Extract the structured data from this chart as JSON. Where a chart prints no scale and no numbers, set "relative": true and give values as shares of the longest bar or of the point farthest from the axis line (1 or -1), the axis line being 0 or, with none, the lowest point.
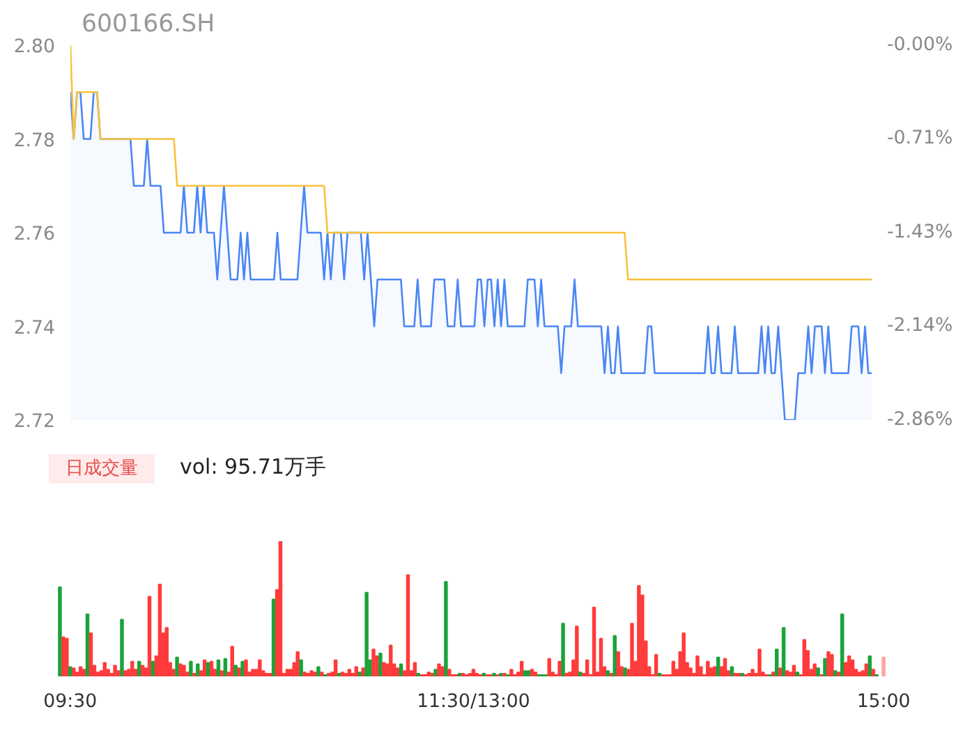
{
  "chart_data": [
    {
      "type": "line",
      "title": "600166.SH",
      "tick_labels": "y",
      "categories": [
        null,
        null,
        null,
        null,
        null,
        null,
        null,
        null,
        null,
        null,
        null,
        null,
        null,
        null,
        null,
        null,
        null,
        null,
        null,
        null,
        null,
        null,
        null,
        null,
        null,
        null,
        null,
        null,
        null,
        null,
        null,
        null,
        null,
        null,
        null,
        null,
        null,
        null,
        null,
        null,
        null,
        null,
        null,
        null,
        null,
        null,
        null,
        null,
        null,
        null,
        null,
        null,
        null,
        null,
        null,
        null,
        null,
        null,
        null,
        null,
        null,
        null,
        null,
        null,
        null,
        null,
        null,
        null,
        null,
        null,
        null,
        null,
        null,
        null,
        null,
        null,
        null,
        null,
        null,
        null,
        null,
        null,
        null,
        null,
        null,
        null,
        null,
        null,
        null,
        null,
        null,
        null,
        null,
        null,
        null,
        null,
        null,
        null,
        null,
        null,
        null,
        null,
        null,
        null,
        null,
        null,
        null,
        null,
        null,
        null,
        null,
        null,
        null,
        null,
        null,
        null,
        null,
        null,
        null,
        null,
        null,
        null,
        null,
        null,
        null,
        null,
        null,
        null,
        null,
        null,
        null,
        null,
        null,
        null,
        null,
        null,
        null,
        null,
        null,
        null,
        null,
        null,
        null,
        null,
        null,
        null,
        null,
        null,
        null,
        null,
        null,
        null,
        null,
        null,
        null,
        null,
        null,
        null,
        null,
        null,
        null,
        null,
        null,
        null,
        null,
        null,
        null,
        null,
        null,
        null,
        null,
        null,
        null,
        null,
        null,
        null,
        null,
        null,
        null,
        null,
        null,
        null,
        null,
        null,
        null,
        null,
        null,
        null,
        null,
        null,
        null,
        null,
        null,
        null,
        null,
        null,
        null,
        null,
        null,
        null,
        null,
        null,
        null,
        null,
        null,
        null,
        null,
        null,
        null,
        null,
        null,
        null,
        null,
        null,
        null,
        null,
        null,
        null,
        null,
        null,
        null,
        null,
        null,
        null,
        null,
        null,
        null,
        null,
        null,
        null,
        null,
        null,
        null,
        null,
        null,
        null,
        null,
        null,
        null,
        null,
        null
      ],
      "ylim": [
        2.72,
        2.8
      ],
      "yticks": [
        {
          "value": 2.72,
          "label": "2.72"
        },
        {
          "value": 2.74,
          "label": "2.74"
        },
        {
          "value": 2.76,
          "label": "2.76"
        },
        {
          "value": 2.78,
          "label": "2.78"
        },
        {
          "value": 2.8,
          "label": "2.80"
        }
      ],
      "y2lim": [
        -2.86,
        0
      ],
      "y2ticks": [
        {
          "value": -2.86,
          "label": "-2.86%"
        },
        {
          "value": -2.14,
          "label": "-2.14%"
        },
        {
          "value": -1.43,
          "label": "-1.43%"
        },
        {
          "value": -0.71,
          "label": "-0.71%"
        },
        {
          "value": 0,
          "label": "-0.00%"
        }
      ],
      "series": [
        {
          "type": "area",
          "color": "#4a86f5",
          "values": [
            2.79,
            2.78,
            2.79,
            2.79,
            2.78,
            2.78,
            2.78,
            2.79,
            2.79,
            2.78,
            2.78,
            2.78,
            2.78,
            2.78,
            2.78,
            2.78,
            2.78,
            2.78,
            2.78,
            2.77,
            2.77,
            2.77,
            2.77,
            2.78,
            2.77,
            2.77,
            2.77,
            2.77,
            2.76,
            2.76,
            2.76,
            2.76,
            2.76,
            2.76,
            2.77,
            2.76,
            2.76,
            2.76,
            2.77,
            2.76,
            2.77,
            2.76,
            2.76,
            2.76,
            2.75,
            2.76,
            2.77,
            2.76,
            2.75,
            2.75,
            2.75,
            2.76,
            2.75,
            2.76,
            2.75,
            2.75,
            2.75,
            2.75,
            2.75,
            2.75,
            2.75,
            2.75,
            2.76,
            2.75,
            2.75,
            2.75,
            2.75,
            2.75,
            2.75,
            2.76,
            2.77,
            2.76,
            2.76,
            2.76,
            2.76,
            2.76,
            2.75,
            2.76,
            2.75,
            2.76,
            2.76,
            2.76,
            2.75,
            2.76,
            2.76,
            2.76,
            2.76,
            2.76,
            2.75,
            2.76,
            2.75,
            2.74,
            2.75,
            2.75,
            2.75,
            2.75,
            2.75,
            2.75,
            2.75,
            2.75,
            2.74,
            2.74,
            2.74,
            2.74,
            2.75,
            2.74,
            2.74,
            2.74,
            2.74,
            2.75,
            2.75,
            2.75,
            2.75,
            2.74,
            2.74,
            2.74,
            2.75,
            2.74,
            2.74,
            2.74,
            2.74,
            2.74,
            2.75,
            2.75,
            2.74,
            2.75,
            2.75,
            2.74,
            2.75,
            2.74,
            2.75,
            2.74,
            2.74,
            2.74,
            2.74,
            2.74,
            2.74,
            2.75,
            2.75,
            2.75,
            2.74,
            2.75,
            2.74,
            2.74,
            2.74,
            2.74,
            2.74,
            2.73,
            2.74,
            2.74,
            2.74,
            2.75,
            2.74,
            2.74,
            2.74,
            2.74,
            2.74,
            2.74,
            2.74,
            2.74,
            2.73,
            2.74,
            2.73,
            2.73,
            2.74,
            2.73,
            2.73,
            2.73,
            2.73,
            2.73,
            2.73,
            2.73,
            2.73,
            2.74,
            2.74,
            2.73,
            2.73,
            2.73,
            2.73,
            2.73,
            2.73,
            2.73,
            2.73,
            2.73,
            2.73,
            2.73,
            2.73,
            2.73,
            2.73,
            2.73,
            2.73,
            2.74,
            2.73,
            2.73,
            2.74,
            2.73,
            2.73,
            2.73,
            2.73,
            2.74,
            2.73,
            2.73,
            2.73,
            2.73,
            2.73,
            2.73,
            2.73,
            2.74,
            2.73,
            2.74,
            2.73,
            2.73,
            2.74,
            2.73,
            2.72,
            2.72,
            2.72,
            2.72,
            2.73,
            2.73,
            2.73,
            2.74,
            2.73,
            2.74,
            2.74,
            2.74,
            2.73,
            2.74,
            2.73,
            2.73,
            2.73,
            2.73,
            2.73,
            2.73,
            2.74,
            2.74,
            2.74,
            2.73,
            2.74,
            2.73,
            2.73
          ]
        },
        {
          "type": "line",
          "color": "#f8c23c",
          "values": [
            2.8,
            2.78,
            2.79,
            2.79,
            2.79,
            2.79,
            2.79,
            2.79,
            2.79,
            2.78,
            2.78,
            2.78,
            2.78,
            2.78,
            2.78,
            2.78,
            2.78,
            2.78,
            2.78,
            2.78,
            2.78,
            2.78,
            2.78,
            2.78,
            2.78,
            2.78,
            2.78,
            2.78,
            2.78,
            2.78,
            2.78,
            2.78,
            2.77,
            2.77,
            2.77,
            2.77,
            2.77,
            2.77,
            2.77,
            2.77,
            2.77,
            2.77,
            2.77,
            2.77,
            2.77,
            2.77,
            2.77,
            2.77,
            2.77,
            2.77,
            2.77,
            2.77,
            2.77,
            2.77,
            2.77,
            2.77,
            2.77,
            2.77,
            2.77,
            2.77,
            2.77,
            2.77,
            2.77,
            2.77,
            2.77,
            2.77,
            2.77,
            2.77,
            2.77,
            2.77,
            2.77,
            2.77,
            2.77,
            2.77,
            2.77,
            2.77,
            2.77,
            2.76,
            2.76,
            2.76,
            2.76,
            2.76,
            2.76,
            2.76,
            2.76,
            2.76,
            2.76,
            2.76,
            2.76,
            2.76,
            2.76,
            2.76,
            2.76,
            2.76,
            2.76,
            2.76,
            2.76,
            2.76,
            2.76,
            2.76,
            2.76,
            2.76,
            2.76,
            2.76,
            2.76,
            2.76,
            2.76,
            2.76,
            2.76,
            2.76,
            2.76,
            2.76,
            2.76,
            2.76,
            2.76,
            2.76,
            2.76,
            2.76,
            2.76,
            2.76,
            2.76,
            2.76,
            2.76,
            2.76,
            2.76,
            2.76,
            2.76,
            2.76,
            2.76,
            2.76,
            2.76,
            2.76,
            2.76,
            2.76,
            2.76,
            2.76,
            2.76,
            2.76,
            2.76,
            2.76,
            2.76,
            2.76,
            2.76,
            2.76,
            2.76,
            2.76,
            2.76,
            2.76,
            2.76,
            2.76,
            2.76,
            2.76,
            2.76,
            2.76,
            2.76,
            2.76,
            2.76,
            2.76,
            2.76,
            2.76,
            2.76,
            2.76,
            2.76,
            2.76,
            2.76,
            2.76,
            2.76,
            2.75,
            2.75,
            2.75,
            2.75,
            2.75,
            2.75,
            2.75,
            2.75,
            2.75,
            2.75,
            2.75,
            2.75,
            2.75,
            2.75,
            2.75,
            2.75,
            2.75,
            2.75,
            2.75,
            2.75,
            2.75,
            2.75,
            2.75,
            2.75,
            2.75,
            2.75,
            2.75,
            2.75,
            2.75,
            2.75,
            2.75,
            2.75,
            2.75,
            2.75,
            2.75,
            2.75,
            2.75,
            2.75,
            2.75,
            2.75,
            2.75,
            2.75,
            2.75,
            2.75,
            2.75,
            2.75,
            2.75,
            2.75,
            2.75,
            2.75,
            2.75,
            2.75,
            2.75,
            2.75,
            2.75,
            2.75,
            2.75,
            2.75,
            2.75,
            2.75,
            2.75,
            2.75,
            2.75,
            2.75,
            2.75,
            2.75,
            2.75,
            2.75,
            2.75,
            2.75,
            2.75,
            2.75,
            2.75,
            2.75
          ]
        }
      ]
    },
    {
      "type": "bar",
      "relative": true,
      "tick_labels": "x",
      "annotations": [
        "日成交量",
        "vol: 95.71万手"
      ],
      "categories": [
        null,
        null,
        null,
        "09:30",
        null,
        null,
        null,
        null,
        null,
        null,
        null,
        null,
        null,
        null,
        null,
        null,
        null,
        null,
        null,
        null,
        null,
        null,
        null,
        null,
        null,
        null,
        null,
        null,
        null,
        null,
        null,
        null,
        null,
        null,
        null,
        null,
        null,
        null,
        null,
        null,
        null,
        null,
        null,
        null,
        null,
        null,
        null,
        null,
        null,
        null,
        null,
        null,
        null,
        null,
        null,
        null,
        null,
        null,
        null,
        null,
        null,
        null,
        null,
        null,
        null,
        null,
        null,
        null,
        null,
        null,
        null,
        null,
        null,
        null,
        null,
        null,
        null,
        null,
        null,
        null,
        null,
        null,
        null,
        null,
        null,
        null,
        null,
        null,
        null,
        null,
        null,
        null,
        null,
        null,
        null,
        null,
        null,
        null,
        null,
        null,
        null,
        null,
        null,
        null,
        null,
        null,
        null,
        null,
        null,
        null,
        null,
        null,
        null,
        null,
        null,
        null,
        null,
        null,
        null,
        null,
        "11:30/13:00",
        null,
        null,
        null,
        null,
        null,
        null,
        null,
        null,
        null,
        null,
        null,
        null,
        null,
        null,
        null,
        null,
        null,
        null,
        null,
        null,
        null,
        null,
        null,
        null,
        null,
        null,
        null,
        null,
        null,
        null,
        null,
        null,
        null,
        null,
        null,
        null,
        null,
        null,
        null,
        null,
        null,
        null,
        null,
        null,
        null,
        null,
        null,
        null,
        null,
        null,
        null,
        null,
        null,
        null,
        null,
        null,
        null,
        null,
        null,
        null,
        null,
        null,
        null,
        null,
        null,
        null,
        null,
        null,
        null,
        null,
        null,
        null,
        null,
        null,
        null,
        null,
        null,
        null,
        null,
        null,
        null,
        null,
        null,
        null,
        null,
        null,
        null,
        null,
        null,
        null,
        null,
        null,
        null,
        null,
        null,
        null,
        null,
        null,
        null,
        null,
        null,
        null,
        null,
        null,
        null,
        null,
        null,
        null,
        null,
        null,
        null,
        null,
        null,
        null,
        null,
        null,
        null,
        null,
        "15:00"
      ],
      "values": [
        0.66,
        0.29,
        0.28,
        0.07,
        0.06,
        0.03,
        0.07,
        0.05,
        0.46,
        0.32,
        0.08,
        0.03,
        0.04,
        0.1,
        0.05,
        0.02,
        0.08,
        0.04,
        0.42,
        0.04,
        0.05,
        0.11,
        0.05,
        0.11,
        0.08,
        0.06,
        0.59,
        0.11,
        0.15,
        0.68,
        0.32,
        0.36,
        0.1,
        0.05,
        0.14,
        0.09,
        0.08,
        0.03,
        0.11,
        0.02,
        0.09,
        0.04,
        0.12,
        0.1,
        0.11,
        0.05,
        0.12,
        0.04,
        0.13,
        0.03,
        0.22,
        0.08,
        0.06,
        0.11,
        0.12,
        0.03,
        0.05,
        0.05,
        0.12,
        0.04,
        0.02,
        0.02,
        0.57,
        0.64,
        1.0,
        0.02,
        0.05,
        0.05,
        0.1,
        0.18,
        0.12,
        0.03,
        0.02,
        0.04,
        0.03,
        0.07,
        0.03,
        0.01,
        0.02,
        0.03,
        0.12,
        0.02,
        0.03,
        0.02,
        0.05,
        0.02,
        0.07,
        0.03,
        0.06,
        0.62,
        0.12,
        0.2,
        0.15,
        0.17,
        0.1,
        0.09,
        0.23,
        0.09,
        0.06,
        0.09,
        0.04,
        0.75,
        0.04,
        0.1,
        0.02,
        0.01,
        0.01,
        0.03,
        0.02,
        0.05,
        0.09,
        0.07,
        0.7,
        0.05,
        0.01,
        0.01,
        0.02,
        0.02,
        0.01,
        0.02,
        0.05,
        0.02,
        0.01,
        0.02,
        0.01,
        0.01,
        0.02,
        0.01,
        0.02,
        0.02,
        0.01,
        0.05,
        0.01,
        0.03,
        0.11,
        0.04,
        0.04,
        0.05,
        0.03,
        0.01,
        0.01,
        0.01,
        0.13,
        0.03,
        0.01,
        0.11,
        0.39,
        0.02,
        0.03,
        0.12,
        0.37,
        0.03,
        0.02,
        0.12,
        0.01,
        0.51,
        0.03,
        0.28,
        0.07,
        0.04,
        0.02,
        0.3,
        0.18,
        0.07,
        0.06,
        0.05,
        0.39,
        0.11,
        0.67,
        0.6,
        0.26,
        0.07,
        0.01,
        0.16,
        0.02,
        0.01,
        0.01,
        0.01,
        0.11,
        0.05,
        0.18,
        0.32,
        0.1,
        0.06,
        0.02,
        0.15,
        0.07,
        0.01,
        0.11,
        0.06,
        0.07,
        0.14,
        0.07,
        0.13,
        0.04,
        0.07,
        0.02,
        0.02,
        0.02,
        0.01,
        0.02,
        0.05,
        0.02,
        0.2,
        0.03,
        0.01,
        0.01,
        0.03,
        0.2,
        0.06,
        0.36,
        0.04,
        0.03,
        0.08,
        0.03,
        0.01,
        0.27,
        0.19,
        0.05,
        0.09,
        0.06,
        0.01,
        0.13,
        0.18,
        0.16,
        0.04,
        0.03,
        0.46,
        0.1,
        0.15,
        0.12,
        0.05,
        0.03,
        0.04,
        0.09,
        0.15,
        0.05,
        0.01,
        null,
        0.14
      ],
      "colors": [
        "#1aa33a",
        "#ff3b3b",
        "#ff3b3b",
        "#1aa33a",
        "#ff3b3b",
        "#ff3b3b",
        "#ff3b3b",
        "#ff3b3b",
        "#1aa33a",
        "#ff3b3b",
        "#ff3b3b",
        "#ff3b3b",
        "#ff3b3b",
        "#ff3b3b",
        "#ff3b3b",
        "#ff3b3b",
        "#ff3b3b",
        "#ff3b3b",
        "#1aa33a",
        "#ff3b3b",
        "#ff3b3b",
        "#ff3b3b",
        "#ff3b3b",
        "#1aa33a",
        "#ff3b3b",
        "#ff3b3b",
        "#ff3b3b",
        "#1aa33a",
        "#ff3b3b",
        "#ff3b3b",
        "#ff3b3b",
        "#ff3b3b",
        "#ff3b3b",
        "#ff3b3b",
        "#1aa33a",
        "#ff3b3b",
        "#ff3b3b",
        "#ff3b3b",
        "#1aa33a",
        "#ff3b3b",
        "#1aa33a",
        "#ff3b3b",
        "#ff3b3b",
        "#1aa33a",
        "#ff3b3b",
        "#ff3b3b",
        "#1aa33a",
        "#ff3b3b",
        "#1aa33a",
        "#ff3b3b",
        "#ff3b3b",
        "#1aa33a",
        "#ff3b3b",
        "#1aa33a",
        "#ff3b3b",
        "#ff3b3b",
        "#ff3b3b",
        "#ff3b3b",
        "#ff3b3b",
        "#ff3b3b",
        "#ff3b3b",
        "#ff3b3b",
        "#1aa33a",
        "#ff3b3b",
        "#ff3b3b",
        "#ff3b3b",
        "#ff3b3b",
        "#ff3b3b",
        "#ff3b3b",
        "#ff3b3b",
        "#1aa33a",
        "#ff3b3b",
        "#ff3b3b",
        "#ff3b3b",
        "#ff3b3b",
        "#1aa33a",
        "#ff3b3b",
        "#1aa33a",
        "#ff3b3b",
        "#ff3b3b",
        "#ff3b3b",
        "#1aa33a",
        "#ff3b3b",
        "#ff3b3b",
        "#ff3b3b",
        "#ff3b3b",
        "#ff3b3b",
        "#1aa33a",
        "#ff3b3b",
        "#1aa33a",
        "#1aa33a",
        "#ff3b3b",
        "#ff3b3b",
        "#1aa33a",
        "#ff3b3b",
        "#ff3b3b",
        "#ff3b3b",
        "#ff3b3b",
        "#ff3b3b",
        "#1aa33a",
        "#ff3b3b",
        "#ff3b3b",
        "#ff3b3b",
        "#ff3b3b",
        "#1aa33a",
        "#ff3b3b",
        "#ff3b3b",
        "#ff3b3b",
        "#ff3b3b",
        "#1aa33a",
        "#ff3b3b",
        "#ff3b3b",
        "#1aa33a",
        "#ff3b3b",
        "#ff3b3b",
        "#ff3b3b",
        "#1aa33a",
        "#ff3b3b",
        "#ff3b3b",
        "#ff3b3b",
        "#ff3b3b",
        "#ff3b3b",
        "#ff3b3b",
        "#1aa33a",
        "#ff3b3b",
        "#ff3b3b",
        "#1aa33a",
        "#ff3b3b",
        "#1aa33a",
        "#ff3b3b",
        "#1aa33a",
        "#ff3b3b",
        "#ff3b3b",
        "#ff3b3b",
        "#ff3b3b",
        "#1aa33a",
        "#1aa33a",
        "#ff3b3b",
        "#ff3b3b",
        "#1aa33a",
        "#1aa33a",
        "#1aa33a",
        "#ff3b3b",
        "#ff3b3b",
        "#ff3b3b",
        "#ff3b3b",
        "#1aa33a",
        "#ff3b3b",
        "#ff3b3b",
        "#ff3b3b",
        "#ff3b3b",
        "#1aa33a",
        "#ff3b3b",
        "#ff3b3b",
        "#ff3b3b",
        "#ff3b3b",
        "#ff3b3b",
        "#ff3b3b",
        "#ff3b3b",
        "#1aa33a",
        "#ff3b3b",
        "#1aa33a",
        "#ff3b3b",
        "#ff3b3b",
        "#1aa33a",
        "#ff3b3b",
        "#ff3b3b",
        "#ff3b3b",
        "#ff3b3b",
        "#ff3b3b",
        "#ff3b3b",
        "#ff3b3b",
        "#ff3b3b",
        "#ff3b3b",
        "#1aa33a",
        "#ff3b3b",
        "#ff3b3b",
        "#ff3b3b",
        "#ff3b3b",
        "#ff3b3b",
        "#ff3b3b",
        "#ff3b3b",
        "#ff3b3b",
        "#ff3b3b",
        "#ff3b3b",
        "#ff3b3b",
        "#ff3b3b",
        "#ff3b3b",
        "#ff3b3b",
        "#ff3b3b",
        "#ff3b3b",
        "#1aa33a",
        "#ff3b3b",
        "#ff3b3b",
        "#ff3b3b",
        "#1aa33a",
        "#ff3b3b",
        "#ff3b3b",
        "#1aa33a",
        "#ff3b3b",
        "#ff3b3b",
        "#ff3b3b",
        "#ff3b3b",
        "#ff3b3b",
        "#ff3b3b",
        "#ff3b3b",
        "#1aa33a",
        "#ff3b3b",
        "#1aa33a",
        "#ff3b3b",
        "#1aa33a",
        "#ff3b3b",
        "#ff3b3b",
        "#ff3b3b",
        "#1aa33a",
        "#ff3b3b",
        "#ff3b3b",
        "#ff3b3b",
        "#ff3b3b",
        "#ff3b3b",
        "#1aa33a",
        "#ff3b3b",
        "#1aa33a",
        "#ff3b3b",
        "#ff3b3b",
        "#1aa33a",
        "#ff3b3b",
        "#1aa33a",
        "#ff3b3b",
        "#ff3b3b",
        "#ff3b3b",
        "#ff3b3b",
        "#ff3b3b",
        "#ff3b3b",
        "#ff3b3b",
        "#1aa33a",
        "#ff3b3b",
        "#1aa33a",
        "#ff3b3b",
        "#ffa3a3"
      ]
    }
  ]
}
